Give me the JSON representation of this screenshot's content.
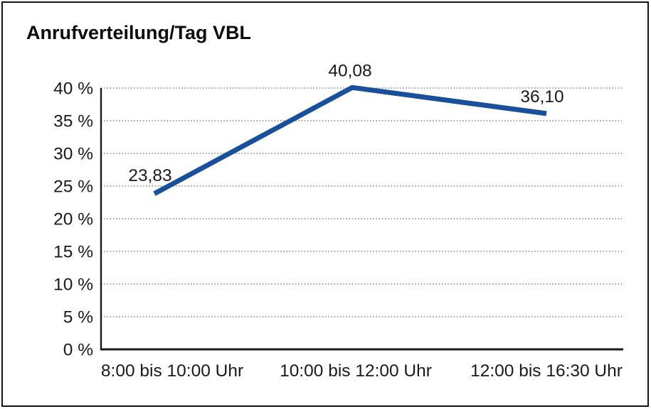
{
  "page": {
    "background_color": "#ffffff",
    "frame_border_color": "#161616"
  },
  "chart_data": {
    "type": "line",
    "title": "Anrufverteilung/Tag VBL",
    "categories": [
      "8:00 bis 10:00 Uhr",
      "10:00 bis 12:00 Uhr",
      "12:00 bis 16:30 Uhr"
    ],
    "values": [
      23.83,
      40.08,
      36.1
    ],
    "value_labels": [
      "23,83",
      "40,08",
      "36,10"
    ],
    "xlabel": "",
    "ylabel": "",
    "ylim": [
      0,
      40
    ],
    "y_tick_step": 5,
    "y_tick_labels": [
      "0 %",
      "5 %",
      "10 %",
      "15 %",
      "20 %",
      "25 %",
      "30 %",
      "35 %",
      "40 %"
    ],
    "grid": "horizontal-dotted",
    "legend_position": "none",
    "line_color": "#18509c",
    "grid_color": "#6e6e6e",
    "axis_color": "#1a1a1a",
    "text_color": "#1a1a1a"
  }
}
